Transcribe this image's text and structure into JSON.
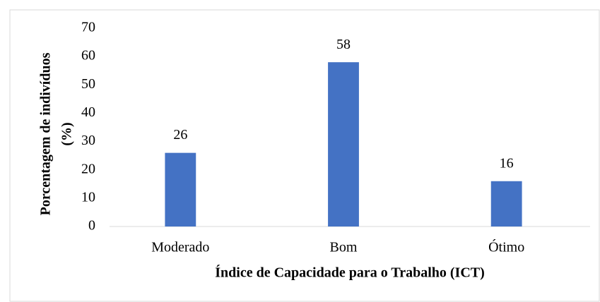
{
  "chart_data": {
    "type": "bar",
    "categories": [
      "Moderado",
      "Bom",
      "Ótimo"
    ],
    "values": [
      26,
      58,
      16
    ],
    "color": "#4472c4",
    "ylim": [
      0,
      70
    ],
    "yticks": [
      0,
      10,
      20,
      30,
      40,
      50,
      60,
      70
    ],
    "grid": false,
    "ylabel": [
      "Porcentagem de indivíduos",
      "(%)"
    ],
    "xlabel": "Índice de Capacidade para o Trabalho (ICT)"
  }
}
